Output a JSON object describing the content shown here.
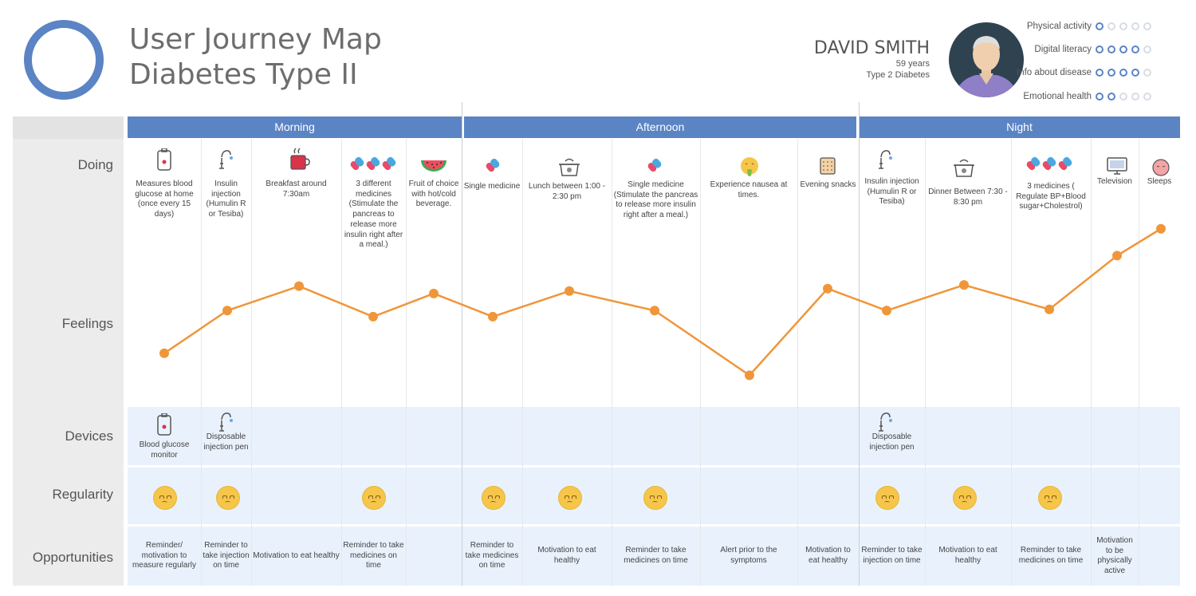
{
  "header": {
    "title_line1": "User Journey Map",
    "title_line2": "Diabetes Type II"
  },
  "persona": {
    "name": "DAVID SMITH",
    "age": "59 years",
    "condition": "Type 2 Diabetes",
    "ratings": [
      {
        "label": "Physical activity",
        "value": 1,
        "max": 5
      },
      {
        "label": "Digital literacy",
        "value": 4,
        "max": 5
      },
      {
        "label": "Info about disease",
        "value": 4,
        "max": 5
      },
      {
        "label": "Emotional health",
        "value": 2,
        "max": 5
      }
    ]
  },
  "rows": {
    "doing": "Doing",
    "feelings": "Feelings",
    "devices": "Devices",
    "regularity": "Regularity",
    "opportunities": "Opportunities"
  },
  "phases": [
    "Morning",
    "Afternoon",
    "Night"
  ],
  "doing": [
    "Measures blood glucose at home (once every 15 days)",
    "Insulin injection (Humulin R or Tesiba)",
    "Breakfast around 7:30am",
    "3 different medicines (Stimulate the pancreas to release more insulin right after a meal.)",
    "Fruit of choice with hot/cold beverage.",
    "Single medicine",
    "Lunch between 1:00 - 2:30 pm",
    "Single medicine (Stimulate the pancreas to release more insulin right after a meal.)",
    "Experience nausea at times.",
    "Evening snacks",
    "Insulin injection (Humulin R or Tesiba)",
    "Dinner Between 7:30 - 8:30 pm",
    "3 medicines ( Regulate BP+Blood sugar+Cholestrol)",
    "Television",
    "Sleeps"
  ],
  "devices": [
    {
      "step": 0,
      "label": "Blood glucose monitor"
    },
    {
      "step": 1,
      "label": "Disposable injection pen"
    },
    {
      "step": 10,
      "label": "Disposable injection pen"
    }
  ],
  "regularity_steps": [
    0,
    1,
    3,
    5,
    6,
    7,
    10,
    11,
    12
  ],
  "opportunities": [
    {
      "step": 0,
      "text": "Reminder/ motivation to measure regularly"
    },
    {
      "step": 1,
      "text": "Reminder to take injection on time"
    },
    {
      "step": 2,
      "text": "Motivation to eat healthy"
    },
    {
      "step": 3,
      "text": "Reminder to take medicines on time"
    },
    {
      "step": 5,
      "text": "Reminder to take medicines on time"
    },
    {
      "step": 6,
      "text": "Motivation to eat healthy"
    },
    {
      "step": 7,
      "text": "Reminder to take medicines on time"
    },
    {
      "step": 8,
      "text": "Alert prior to the symptoms"
    },
    {
      "step": 9,
      "text": "Motivation to eat healthy"
    },
    {
      "step": 10,
      "text": "Reminder to take injection on time"
    },
    {
      "step": 11,
      "text": "Motivation to eat healthy"
    },
    {
      "step": 12,
      "text": "Reminder to take medicines on time"
    },
    {
      "step": 13,
      "text": "Motivation to be physically active"
    }
  ],
  "feelings": [
    2.3,
    5.8,
    7.8,
    5.3,
    7.2,
    5.3,
    7.4,
    5.8,
    0.5,
    7.6,
    5.8,
    7.9,
    5.9,
    10.3,
    12.5
  ],
  "colors": {
    "accent": "#5b84c4",
    "curve": "#f0963a",
    "row_bg": "#e9f2fc",
    "face": "#f5c64a"
  }
}
